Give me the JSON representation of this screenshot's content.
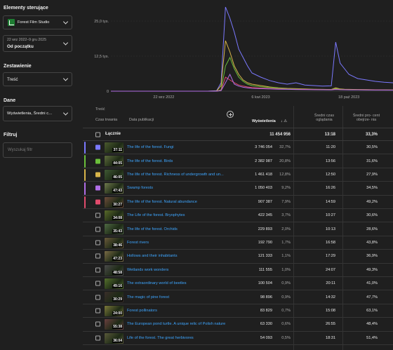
{
  "sidebar": {
    "controls_title": "Elementy sterujące",
    "channel": "Forest Film Studio",
    "date_range_small": "22 wrz 2022–9 gru 2025",
    "date_range_main": "Od początku",
    "breakdown_title": "Zestawienie",
    "breakdown_value": "Treść",
    "data_title": "Dane",
    "data_value": "Wyświetlenia, Średni c...",
    "filter_title": "Filtruj",
    "filter_placeholder": "Wyszukaj filtr"
  },
  "chart_data": {
    "type": "line",
    "y_ticks": [
      "25,0 tys.",
      "12,5 tys.",
      "0"
    ],
    "ylim": [
      0,
      30000
    ],
    "x_ticks": [
      "22 wrz 2022",
      "6 kwi 2023",
      "18 paź 2023"
    ],
    "x": [
      0,
      20,
      40,
      60,
      80,
      100,
      110,
      120,
      125,
      130,
      135,
      140,
      145,
      150,
      155,
      160,
      170,
      180,
      190,
      200,
      210,
      220,
      230,
      240,
      250,
      255,
      260,
      265,
      270,
      280,
      290,
      300,
      310,
      320
    ],
    "series": [
      {
        "color": "#7b79ff",
        "values": [
          0,
          0,
          0,
          0,
          0,
          0,
          0,
          200,
          3000,
          30000,
          26000,
          21000,
          15000,
          12000,
          9000,
          6500,
          5000,
          3800,
          3000,
          2500,
          3000,
          2200,
          2000,
          1800,
          1900,
          17500,
          10000,
          8000,
          6000,
          4500,
          4000,
          3500,
          3200,
          3000
        ]
      },
      {
        "color": "#d9b54a",
        "values": [
          0,
          0,
          0,
          0,
          0,
          0,
          0,
          100,
          2000,
          18000,
          14000,
          9000,
          6000,
          4000,
          3000,
          2500,
          2000,
          1500,
          1200,
          1000,
          900,
          800,
          700,
          650,
          600,
          1200,
          800,
          700,
          650,
          600,
          550,
          500,
          480,
          450
        ]
      },
      {
        "color": "#6bbf3b",
        "values": [
          0,
          0,
          0,
          0,
          0,
          0,
          0,
          0,
          500,
          9000,
          12000,
          8000,
          5000,
          3500,
          2500,
          2000,
          1600,
          1300,
          1100,
          900,
          800,
          700,
          650,
          600,
          550,
          900,
          700,
          600,
          550,
          500,
          480,
          450,
          430,
          400
        ]
      },
      {
        "color": "#e14b6c",
        "values": [
          0,
          0,
          0,
          0,
          0,
          0,
          0,
          0,
          300,
          5000,
          4000,
          3000,
          2200,
          1800,
          1500,
          1300,
          1100,
          950,
          850,
          750,
          700,
          650,
          600,
          560,
          520,
          700,
          600,
          550,
          520,
          500,
          480,
          460,
          440,
          420
        ]
      },
      {
        "color": "#b06ee6",
        "values": [
          0,
          0,
          0,
          0,
          0,
          0,
          0,
          0,
          200,
          3000,
          6000,
          2500,
          1800,
          1400,
          1200,
          1000,
          900,
          800,
          700,
          650,
          600,
          550,
          520,
          500,
          480,
          600,
          520,
          500,
          480,
          460,
          440,
          420,
          400,
          380
        ]
      }
    ]
  },
  "table": {
    "group_header": "Treść",
    "headers": {
      "duration": "Czas trwania",
      "published": "Data publikacji",
      "views": "Wyświetlenia",
      "avg_time": "Średni czas oglądania",
      "avg_pct": "Średni pro- cent obejrze- nia"
    },
    "total": {
      "label": "Łącznie",
      "views": "11 454 956",
      "avg_time": "13:18",
      "avg_pct": "33,3%"
    },
    "rows": [
      {
        "duration": "37:11",
        "title": "The life of the forest. Fungi",
        "views": "3 746 054",
        "share": "32,7%",
        "avg_time": "11:20",
        "avg_pct": "30,5%",
        "thumb": "#4b5a2e",
        "bar": "#7b79ff"
      },
      {
        "duration": "44:05",
        "title": "The life of the forest. Birds",
        "views": "2 382 987",
        "share": "20,8%",
        "avg_time": "13:56",
        "avg_pct": "31,6%",
        "thumb": "#5e6c3c",
        "bar": "#6bbf3b"
      },
      {
        "duration": "46:05",
        "title": "The life of the forest. Richness of undergrowth and un...",
        "views": "1 461 418",
        "share": "12,8%",
        "avg_time": "12:50",
        "avg_pct": "27,9%",
        "thumb": "#3f5a34",
        "bar": "#d9b54a"
      },
      {
        "duration": "47:43",
        "title": "Swamp forests",
        "views": "1 050 403",
        "share": "9,2%",
        "avg_time": "16:26",
        "avg_pct": "34,5%",
        "thumb": "#6f7a4d",
        "bar": "#b06ee6"
      },
      {
        "duration": "30:27",
        "title": "The life of the forest. Natural abundance",
        "views": "907 387",
        "share": "7,9%",
        "avg_time": "14:59",
        "avg_pct": "49,2%",
        "thumb": "#6d4b3a",
        "bar": "#e14b6c"
      },
      {
        "duration": "34:08",
        "title": "The Life of the forest. Bryophytes",
        "views": "422 345",
        "share": "3,7%",
        "avg_time": "10:27",
        "avg_pct": "30,6%",
        "thumb": "#5a6a2a",
        "bar": ""
      },
      {
        "duration": "35:43",
        "title": "The life of the forest. Orchids",
        "views": "229 893",
        "share": "2,0%",
        "avg_time": "10:13",
        "avg_pct": "28,6%",
        "thumb": "#4f6a44",
        "bar": ""
      },
      {
        "duration": "38:46",
        "title": "Forest rivers",
        "views": "192 790",
        "share": "1,7%",
        "avg_time": "16:58",
        "avg_pct": "43,8%",
        "thumb": "#6a5a3a",
        "bar": ""
      },
      {
        "duration": "47:23",
        "title": "Hollows and their inhabitants",
        "views": "121 333",
        "share": "1,1%",
        "avg_time": "17:29",
        "avg_pct": "36,9%",
        "thumb": "#7a6b45",
        "bar": ""
      },
      {
        "duration": "48:58",
        "title": "Wetlands work wonders",
        "views": "111 555",
        "share": "1,0%",
        "avg_time": "24:07",
        "avg_pct": "49,3%",
        "thumb": "#4a4a4a",
        "bar": ""
      },
      {
        "duration": "49:16",
        "title": "The extraordinary world of beetles",
        "views": "100 504",
        "share": "0,9%",
        "avg_time": "20:11",
        "avg_pct": "41,0%",
        "thumb": "#55702c",
        "bar": ""
      },
      {
        "duration": "30:29",
        "title": "The magic of pine forest",
        "views": "98 896",
        "share": "0,9%",
        "avg_time": "14:32",
        "avg_pct": "47,7%",
        "thumb": "#3a2e2a",
        "bar": ""
      },
      {
        "duration": "24:00",
        "title": "Forest pollinators",
        "views": "83 829",
        "share": "0,7%",
        "avg_time": "15:08",
        "avg_pct": "63,1%",
        "thumb": "#7d7a3a",
        "bar": ""
      },
      {
        "duration": "55:38",
        "title": "The European pond turtle. A unique relic of Polish nature",
        "views": "63 330",
        "share": "0,6%",
        "avg_time": "26:55",
        "avg_pct": "48,4%",
        "thumb": "#6a3f3f",
        "bar": ""
      },
      {
        "duration": "36:04",
        "title": "Life of the forest. The great herbivores",
        "views": "54 093",
        "share": "0,5%",
        "avg_time": "18:31",
        "avg_pct": "51,4%",
        "thumb": "#5a5a3a",
        "bar": ""
      }
    ]
  }
}
